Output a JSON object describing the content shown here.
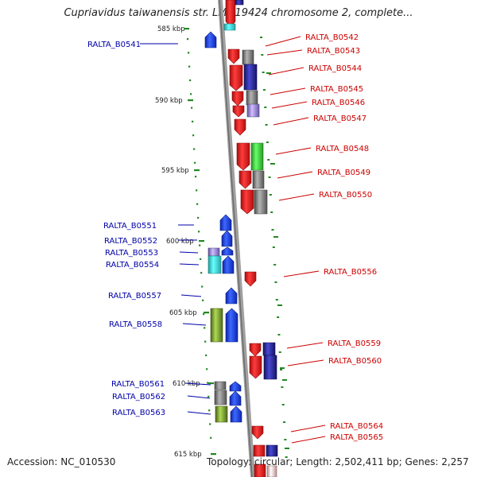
{
  "title": "Cupriavidus taiwanensis str. LMG19424 chromosome 2, complete...",
  "accession": "Accession: NC_010530",
  "topology": "Topology: circular; Length: 2,502,411 bp; Genes: 2,257",
  "scale_labels": [
    {
      "label": "585 kbp",
      "kbp": 585
    },
    {
      "label": "590 kbp",
      "kbp": 590
    },
    {
      "label": "595 kbp",
      "kbp": 595
    },
    {
      "label": "600 kbp",
      "kbp": 600
    },
    {
      "label": "605 kbp",
      "kbp": 605
    },
    {
      "label": "610 kbp",
      "kbp": 610
    },
    {
      "label": "615 kbp",
      "kbp": 615
    }
  ],
  "colors": {
    "forward_label": "#0000aa",
    "reverse_label": "#cc0000",
    "red_gene": "#ee1111",
    "blue_gene": "#1133ee",
    "gray_gene": "#707070",
    "navy_gene": "#1a1a88",
    "green_gene": "#33cc33",
    "olive_gene": "#6b8e23",
    "cyan_gene": "#33dddd",
    "lavender_gene": "#8877dd",
    "backbone": "#909090",
    "tick": "#228822"
  },
  "left_labels": [
    {
      "id": "RALTA_B0541",
      "text": "RALTA_B0541"
    },
    {
      "id": "RALTA_B0551",
      "text": "RALTA_B0551"
    },
    {
      "id": "RALTA_B0552",
      "text": "RALTA_B0552"
    },
    {
      "id": "RALTA_B0553",
      "text": "RALTA_B0553"
    },
    {
      "id": "RALTA_B0554",
      "text": "RALTA_B0554"
    },
    {
      "id": "RALTA_B0557",
      "text": "RALTA_B0557"
    },
    {
      "id": "RALTA_B0558",
      "text": "RALTA_B0558"
    },
    {
      "id": "RALTA_B0561",
      "text": "RALTA_B0561"
    },
    {
      "id": "RALTA_B0562",
      "text": "RALTA_B0562"
    },
    {
      "id": "RALTA_B0563",
      "text": "RALTA_B0563"
    }
  ],
  "right_labels": [
    {
      "id": "RALTA_B0542",
      "text": "RALTA_B0542"
    },
    {
      "id": "RALTA_B0543",
      "text": "RALTA_B0543"
    },
    {
      "id": "RALTA_B0544",
      "text": "RALTA_B0544"
    },
    {
      "id": "RALTA_B0545",
      "text": "RALTA_B0545"
    },
    {
      "id": "RALTA_B0546",
      "text": "RALTA_B0546"
    },
    {
      "id": "RALTA_B0547",
      "text": "RALTA_B0547"
    },
    {
      "id": "RALTA_B0548",
      "text": "RALTA_B0548"
    },
    {
      "id": "RALTA_B0549",
      "text": "RALTA_B0549"
    },
    {
      "id": "RALTA_B0550",
      "text": "RALTA_B0550"
    },
    {
      "id": "RALTA_B0556",
      "text": "RALTA_B0556"
    },
    {
      "id": "RALTA_B0559",
      "text": "RALTA_B0559"
    },
    {
      "id": "RALTA_B0560",
      "text": "RALTA_B0560"
    },
    {
      "id": "RALTA_B0564",
      "text": "RALTA_B0564"
    },
    {
      "id": "RALTA_B0565",
      "text": "RALTA_B0565"
    }
  ]
}
